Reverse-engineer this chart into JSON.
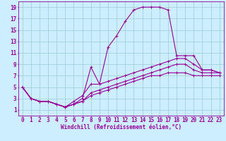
{
  "xlabel": "Windchill (Refroidissement éolien,°C)",
  "background_color": "#cceeff",
  "line_color": "#990099",
  "grid_color": "#99cccc",
  "xlim": [
    -0.5,
    23.5
  ],
  "ylim": [
    0,
    20
  ],
  "xticks": [
    0,
    1,
    2,
    3,
    4,
    5,
    6,
    7,
    8,
    9,
    10,
    11,
    12,
    13,
    14,
    15,
    16,
    17,
    18,
    19,
    20,
    21,
    22,
    23
  ],
  "yticks": [
    1,
    3,
    5,
    7,
    9,
    11,
    13,
    15,
    17,
    19
  ],
  "line1_x": [
    0,
    1,
    2,
    3,
    4,
    5,
    6,
    7,
    8,
    9,
    10,
    11,
    12,
    13,
    14,
    15,
    16,
    17,
    18,
    19,
    20,
    21,
    22,
    23
  ],
  "line1_y": [
    5,
    3,
    2.5,
    2.5,
    2,
    1.5,
    2,
    3,
    8.5,
    5.5,
    12,
    14,
    16.5,
    18.5,
    19,
    19,
    19,
    18.5,
    10.5,
    10.5,
    10.5,
    8,
    8,
    7.5
  ],
  "line2_x": [
    0,
    1,
    2,
    3,
    4,
    5,
    6,
    7,
    8,
    9,
    10,
    11,
    12,
    13,
    14,
    15,
    16,
    17,
    18,
    19,
    20,
    21,
    22,
    23
  ],
  "line2_y": [
    5,
    3,
    2.5,
    2.5,
    2,
    1.5,
    2.5,
    3.5,
    5.5,
    5.5,
    6,
    6.5,
    7,
    7.5,
    8,
    8.5,
    9,
    9.5,
    10,
    10,
    9,
    8,
    8,
    7.5
  ],
  "line3_x": [
    0,
    1,
    2,
    3,
    4,
    5,
    6,
    7,
    8,
    9,
    10,
    11,
    12,
    13,
    14,
    15,
    16,
    17,
    18,
    19,
    20,
    21,
    22,
    23
  ],
  "line3_y": [
    5,
    3,
    2.5,
    2.5,
    2,
    1.5,
    2,
    2.5,
    4,
    4.5,
    5,
    5.5,
    6,
    6.5,
    7,
    7.5,
    8,
    8.5,
    9,
    9,
    8,
    7.5,
    7.5,
    7.5
  ],
  "line4_x": [
    0,
    1,
    2,
    3,
    4,
    5,
    6,
    7,
    8,
    9,
    10,
    11,
    12,
    13,
    14,
    15,
    16,
    17,
    18,
    19,
    20,
    21,
    22,
    23
  ],
  "line4_y": [
    5,
    3,
    2.5,
    2.5,
    2,
    1.5,
    2,
    2.5,
    3.5,
    4,
    4.5,
    5,
    5.5,
    6,
    6.5,
    7,
    7,
    7.5,
    7.5,
    7.5,
    7,
    7,
    7,
    7
  ],
  "xlabel_fontsize": 5.5,
  "tick_fontsize": 5.5,
  "linewidth": 0.8,
  "marker": "+",
  "markersize": 3
}
